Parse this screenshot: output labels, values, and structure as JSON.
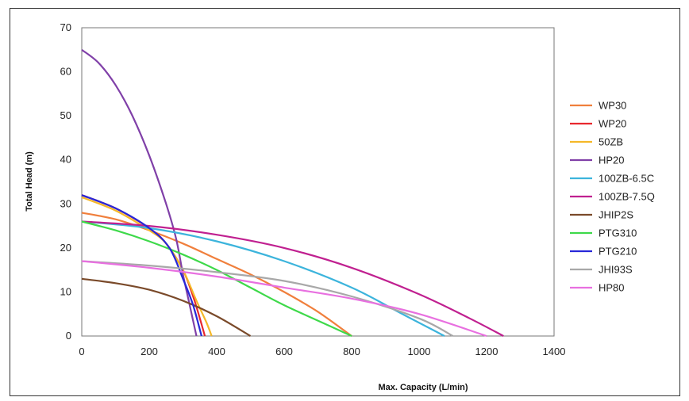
{
  "chart_data": {
    "type": "line",
    "title": "",
    "xlabel": "Max. Capacity (L/min)",
    "ylabel": "Total Head (m)",
    "xlim": [
      0,
      1400
    ],
    "ylim": [
      0,
      70
    ],
    "xticks": [
      "0",
      "200",
      "400",
      "600",
      "800",
      "1000",
      "1200",
      "1400"
    ],
    "yticks": [
      "0",
      "10",
      "20",
      "30",
      "40",
      "50",
      "60",
      "70"
    ],
    "grid": false,
    "legend_position": "right",
    "series": [
      {
        "name": "WP30",
        "color": "#f07f3c",
        "points": [
          [
            0,
            28
          ],
          [
            100,
            26.5
          ],
          [
            200,
            24
          ],
          [
            300,
            21
          ],
          [
            400,
            17.5
          ],
          [
            500,
            14
          ],
          [
            600,
            10
          ],
          [
            700,
            5.5
          ],
          [
            800,
            0
          ]
        ]
      },
      {
        "name": "WP20",
        "color": "#e8282e",
        "points": [
          [
            0,
            32
          ],
          [
            100,
            29
          ],
          [
            200,
            24.5
          ],
          [
            250,
            21
          ],
          [
            300,
            15
          ],
          [
            330,
            9
          ],
          [
            350,
            4
          ],
          [
            365,
            0
          ]
        ]
      },
      {
        "name": "50ZB",
        "color": "#f5b829",
        "points": [
          [
            0,
            31.5
          ],
          [
            100,
            28.5
          ],
          [
            200,
            24
          ],
          [
            250,
            21
          ],
          [
            300,
            15
          ],
          [
            340,
            8
          ],
          [
            370,
            3
          ],
          [
            385,
            0
          ]
        ]
      },
      {
        "name": "HP20",
        "color": "#8040a8",
        "points": [
          [
            0,
            65
          ],
          [
            50,
            62
          ],
          [
            100,
            57
          ],
          [
            150,
            50
          ],
          [
            200,
            41
          ],
          [
            250,
            30
          ],
          [
            280,
            22
          ],
          [
            300,
            14
          ],
          [
            320,
            7
          ],
          [
            340,
            0
          ]
        ]
      },
      {
        "name": "100ZB-6.5C",
        "color": "#3cb4dc",
        "points": [
          [
            0,
            26
          ],
          [
            200,
            24.5
          ],
          [
            400,
            21.5
          ],
          [
            600,
            17
          ],
          [
            800,
            11
          ],
          [
            950,
            5
          ],
          [
            1050,
            1
          ],
          [
            1075,
            0
          ]
        ]
      },
      {
        "name": "100ZB-7.5Q",
        "color": "#c02090",
        "points": [
          [
            0,
            26
          ],
          [
            200,
            25
          ],
          [
            400,
            23
          ],
          [
            600,
            20
          ],
          [
            800,
            15.5
          ],
          [
            1000,
            9.5
          ],
          [
            1150,
            4
          ],
          [
            1250,
            0
          ]
        ]
      },
      {
        "name": "JHIP2S",
        "color": "#7a4a2a",
        "points": [
          [
            0,
            13
          ],
          [
            100,
            12
          ],
          [
            200,
            10.5
          ],
          [
            300,
            8
          ],
          [
            400,
            4.5
          ],
          [
            500,
            0
          ]
        ]
      },
      {
        "name": "PTG310",
        "color": "#3ed94a",
        "points": [
          [
            0,
            26
          ],
          [
            100,
            24
          ],
          [
            200,
            21.5
          ],
          [
            300,
            18.5
          ],
          [
            400,
            15
          ],
          [
            500,
            11
          ],
          [
            600,
            7
          ],
          [
            700,
            3.5
          ],
          [
            800,
            0
          ]
        ]
      },
      {
        "name": "PTG210",
        "color": "#2828d8",
        "points": [
          [
            0,
            32
          ],
          [
            100,
            29
          ],
          [
            200,
            24.5
          ],
          [
            260,
            20
          ],
          [
            300,
            13
          ],
          [
            330,
            7
          ],
          [
            355,
            0
          ]
        ]
      },
      {
        "name": "JHI93S",
        "color": "#a8a8a8",
        "points": [
          [
            0,
            17
          ],
          [
            200,
            16
          ],
          [
            400,
            14.5
          ],
          [
            600,
            12.5
          ],
          [
            800,
            9
          ],
          [
            1000,
            4
          ],
          [
            1100,
            0
          ]
        ]
      },
      {
        "name": "HP80",
        "color": "#e870e0",
        "points": [
          [
            0,
            17
          ],
          [
            200,
            15.5
          ],
          [
            400,
            13.5
          ],
          [
            600,
            11
          ],
          [
            800,
            8.5
          ],
          [
            1000,
            5
          ],
          [
            1200,
            0
          ]
        ]
      }
    ]
  }
}
